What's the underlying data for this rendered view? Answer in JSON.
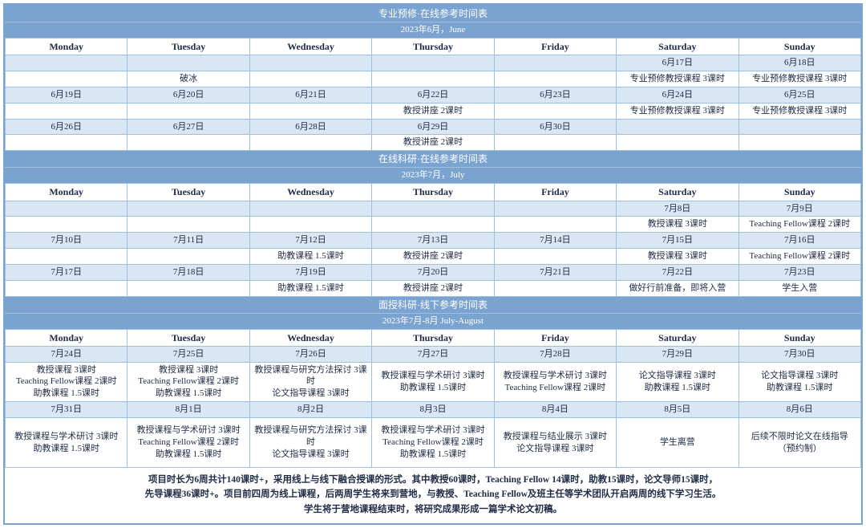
{
  "colors": {
    "header_bg": "#7ba3cf",
    "header_fg": "#ffffff",
    "border": "#9fbfe0",
    "date_bg": "#d9e6f3",
    "content_bg": "#ffffff",
    "text": "#1f2a44"
  },
  "days": [
    "Monday",
    "Tuesday",
    "Wednesday",
    "Thursday",
    "Friday",
    "Saturday",
    "Sunday"
  ],
  "sections": [
    {
      "title": "专业预修·在线参考时间表",
      "subtitle": "2023年6月，June",
      "rows": [
        {
          "type": "date",
          "cells": [
            "",
            "",
            "",
            "",
            "",
            "6月17日",
            "6月18日"
          ]
        },
        {
          "type": "content",
          "cells": [
            "",
            "破冰",
            "",
            "",
            "",
            "专业预修教授课程 3课时",
            "专业预修教授课程 3课时"
          ]
        },
        {
          "type": "date",
          "cells": [
            "6月19日",
            "6月20日",
            "6月21日",
            "6月22日",
            "6月23日",
            "6月24日",
            "6月25日"
          ]
        },
        {
          "type": "content",
          "cells": [
            "",
            "",
            "",
            "教授讲座 2课时",
            "",
            "专业预修教授课程 3课时",
            "专业预修教授课程 3课时"
          ]
        },
        {
          "type": "date",
          "cells": [
            "6月26日",
            "6月27日",
            "6月28日",
            "6月29日",
            "6月30日",
            "",
            ""
          ]
        },
        {
          "type": "content",
          "cells": [
            "",
            "",
            "",
            "教授讲座 2课时",
            "",
            "",
            ""
          ]
        }
      ]
    },
    {
      "title": "在线科研·在线参考时间表",
      "subtitle": "2023年7月，July",
      "rows": [
        {
          "type": "date",
          "cells": [
            "",
            "",
            "",
            "",
            "",
            "7月8日",
            "7月9日"
          ]
        },
        {
          "type": "content",
          "cells": [
            "",
            "",
            "",
            "",
            "",
            "教授课程 3课时",
            "Teaching Fellow课程 2课时"
          ]
        },
        {
          "type": "date",
          "cells": [
            "7月10日",
            "7月11日",
            "7月12日",
            "7月13日",
            "7月14日",
            "7月15日",
            "7月16日"
          ]
        },
        {
          "type": "content",
          "cells": [
            "",
            "",
            "助教课程 1.5课时",
            "教授讲座 2课时",
            "",
            "教授课程 3课时",
            "Teaching Fellow课程 2课时"
          ]
        },
        {
          "type": "date",
          "cells": [
            "7月17日",
            "7月18日",
            "7月19日",
            "7月20日",
            "7月21日",
            "7月22日",
            "7月23日"
          ]
        },
        {
          "type": "content",
          "cells": [
            "",
            "",
            "助教课程 1.5课时",
            "教授讲座 2课时",
            "",
            "做好行前准备，即将入营",
            "学生入营"
          ]
        }
      ]
    },
    {
      "title": "面授科研·线下参考时间表",
      "subtitle": "2023年7月-8月 July-August",
      "rows": [
        {
          "type": "date",
          "cells": [
            "7月24日",
            "7月25日",
            "7月26日",
            "7月27日",
            "7月28日",
            "7月29日",
            "7月30日"
          ]
        },
        {
          "type": "content",
          "height": "tall",
          "cells": [
            "教授课程 3课时\nTeaching Fellow课程 2课时\n助教课程 1.5课时",
            "教授课程 3课时\nTeaching Fellow课程 2课时\n助教课程 1.5课时",
            "教授课程与研究方法探讨 3课时\n论文指导课程 3课时",
            "教授课程与学术研讨 3课时\n助教课程 1.5课时",
            "教授课程与学术研讨 3课时\nTeaching Fellow课程 2课时",
            "论文指导课程 3课时\n助教课程 1.5课时",
            "论文指导课程 3课时\n助教课程 1.5课时"
          ]
        },
        {
          "type": "date",
          "cells": [
            "7月31日",
            "8月1日",
            "8月2日",
            "8月3日",
            "8月4日",
            "8月5日",
            "8月6日"
          ]
        },
        {
          "type": "content",
          "height": "xtall",
          "cells": [
            "教授课程与学术研讨 3课时\n助教课程 1.5课时",
            "教授课程与学术研讨 3课时\nTeaching Fellow课程 2课时\n助教课程 1.5课时",
            "教授课程与研究方法探讨 3课时\n论文指导课程 3课时",
            "教授课程与学术研讨 3课时\nTeaching Fellow课程 2课时\n助教课程 1.5课时",
            "教授课程与结业展示 3课时\n论文指导课程 3课时",
            "学生离营",
            "后续不限时论文在线指导\n（预约制）"
          ]
        }
      ]
    }
  ],
  "footer": [
    "项目时长为6周共计140课时+，采用线上与线下融合授课的形式。其中教授60课时，Teaching Fellow 14课时，助教15课时，论文导师15课时，",
    "先导课程36课时+。项目前四周为线上课程，后两周学生将来到营地，与教授、Teaching Fellow及班主任等学术团队开启两周的线下学习生活。",
    "学生将于营地课程结束时，将研究成果形成一篇学术论文初稿。"
  ]
}
